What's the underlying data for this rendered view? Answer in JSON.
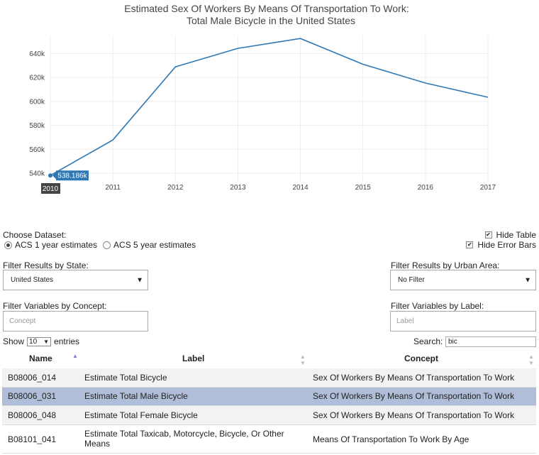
{
  "chart_data": {
    "type": "line",
    "title": "Estimated Sex Of Workers By Means Of Transportation To Work:",
    "subtitle": "Total Male Bicycle in the United States",
    "x": [
      "2010",
      "2011",
      "2012",
      "2013",
      "2014",
      "2015",
      "2016",
      "2017"
    ],
    "series": [
      {
        "values": [
          538186,
          567800,
          628800,
          644300,
          652500,
          631000,
          615300,
          603500
        ]
      }
    ],
    "ylim": [
      533000,
      655000
    ],
    "yticks": [
      540000,
      560000,
      580000,
      600000,
      620000,
      640000
    ],
    "ytick_labels": [
      "540k",
      "560k",
      "580k",
      "600k",
      "620k",
      "640k"
    ],
    "grid": true,
    "line_color": "#2f78b4",
    "hover": {
      "x_label": "2010",
      "value_label": "538.186k"
    }
  },
  "controls": {
    "choose_dataset_label": "Choose Dataset:",
    "dataset_options": [
      {
        "label": "ACS 1 year estimates",
        "selected": true
      },
      {
        "label": "ACS 5 year estimates",
        "selected": false
      }
    ],
    "hide_table_label": "Hide Table",
    "hide_table_checked": true,
    "hide_error_bars_label": "Hide Error Bars",
    "hide_error_bars_checked": true,
    "filter_state_label": "Filter Results by State:",
    "filter_state_value": "United States",
    "filter_urban_label": "Filter Results by Urban Area:",
    "filter_urban_value": "No Filter",
    "filter_concept_label": "Filter Variables by Concept:",
    "filter_concept_placeholder": "Concept",
    "filter_label_label": "Filter Variables by Label:",
    "filter_label_placeholder": "Label",
    "show_label": "Show",
    "entries_value": "10",
    "entries_label": "entries",
    "search_label": "Search:",
    "search_value": "bic"
  },
  "table": {
    "columns": [
      "Name",
      "Label",
      "Concept"
    ],
    "rows": [
      {
        "name": "B08006_014",
        "label": "Estimate Total Bicycle",
        "concept": "Sex Of Workers By Means Of Transportation To Work"
      },
      {
        "name": "B08006_031",
        "label": "Estimate Total Male Bicycle",
        "concept": "Sex Of Workers By Means Of Transportation To Work"
      },
      {
        "name": "B08006_048",
        "label": "Estimate Total Female Bicycle",
        "concept": "Sex Of Workers By Means Of Transportation To Work"
      },
      {
        "name": "B08101_041",
        "label": "Estimate Total Taxicab, Motorcycle, Bicycle, Or Other Means",
        "concept": "Means Of Transportation To Work By Age"
      }
    ],
    "selected_row": 1,
    "colors": {
      "selected": "#b0bed9",
      "alt": "#f2f2f2"
    }
  }
}
